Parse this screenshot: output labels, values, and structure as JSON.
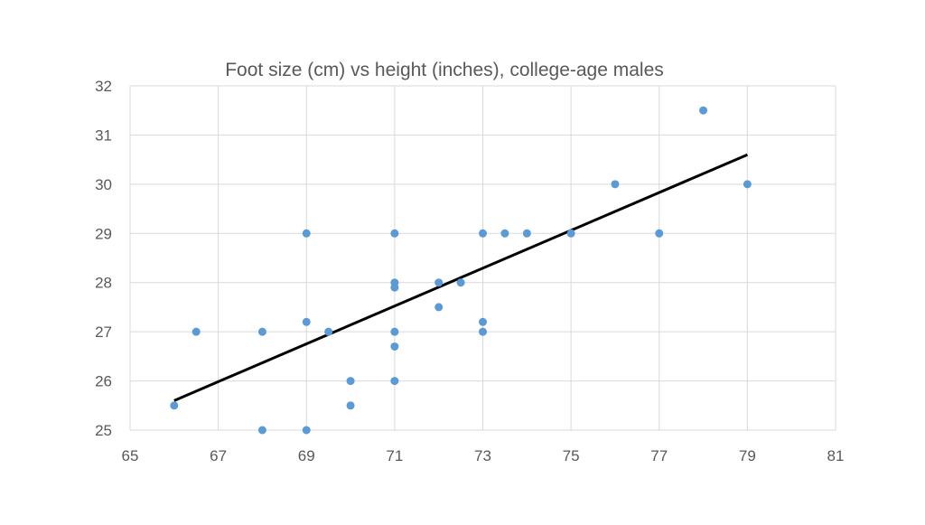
{
  "chart_data": {
    "type": "scatter",
    "title": "Foot size (cm) vs height (inches), college-age males",
    "xlabel": "",
    "ylabel": "",
    "xlim": [
      65,
      81
    ],
    "ylim": [
      25,
      32
    ],
    "x_ticks": [
      "65",
      "67",
      "69",
      "71",
      "73",
      "75",
      "77",
      "79",
      "81"
    ],
    "y_ticks": [
      "25",
      "26",
      "27",
      "28",
      "29",
      "30",
      "31",
      "32"
    ],
    "grid": true,
    "legend": "none",
    "point_color": "#5b9bd5",
    "trendline_color": "#000000",
    "series": [
      {
        "x": [
          66,
          66.5,
          68,
          68,
          69,
          69,
          69,
          69.5,
          70,
          70,
          71,
          71,
          71,
          71,
          71,
          71,
          72,
          72,
          72.5,
          73,
          73,
          73,
          73.5,
          74,
          75,
          76,
          77,
          78,
          79
        ],
        "y": [
          25.5,
          27,
          27,
          25,
          29,
          27.2,
          25,
          27,
          26,
          25.5,
          29,
          28,
          27.9,
          27,
          26.7,
          26,
          28,
          27.5,
          28,
          29,
          27.2,
          27,
          29,
          29,
          29,
          30,
          29,
          31.5,
          30
        ]
      }
    ],
    "trendline": {
      "x": [
        66,
        79
      ],
      "y": [
        25.6,
        30.6
      ]
    }
  }
}
